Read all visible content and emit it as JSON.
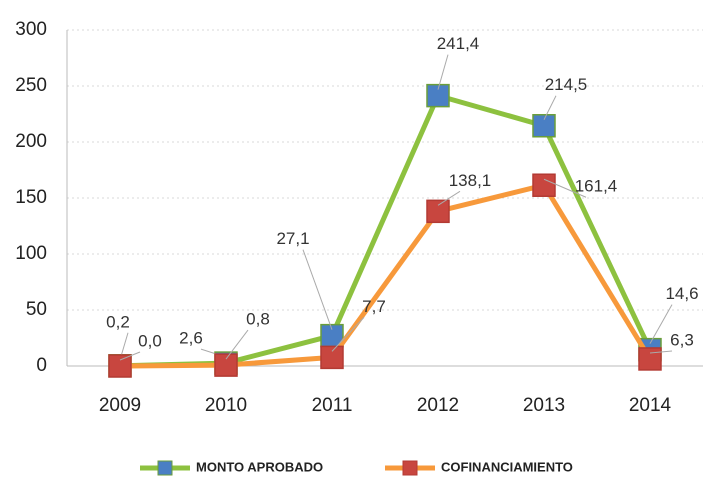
{
  "chart_data": {
    "type": "line",
    "categories": [
      "2009",
      "2010",
      "2011",
      "2012",
      "2013",
      "2014"
    ],
    "series": [
      {
        "name": "MONTO APROBADO",
        "color": "#8dc13f",
        "marker_color": "#4a7fc4",
        "values": [
          0.2,
          2.6,
          27.1,
          241.4,
          214.5,
          14.6
        ],
        "value_labels": [
          "0,2",
          "2,6",
          "27,1",
          "241,4",
          "214,5",
          "14,6"
        ]
      },
      {
        "name": "COFINANCIAMIENTO",
        "color": "#f7993b",
        "marker_color": "#c8463f",
        "values": [
          0.0,
          0.8,
          7.7,
          138.1,
          161.4,
          6.3
        ],
        "value_labels": [
          "0,0",
          "0,8",
          "7,7",
          "138,1",
          "161,4",
          "6,3"
        ]
      }
    ],
    "ylim": [
      0,
      300
    ],
    "yticks": [
      0,
      50,
      100,
      150,
      200,
      250,
      300
    ],
    "grid": true,
    "legend": "bottom"
  }
}
